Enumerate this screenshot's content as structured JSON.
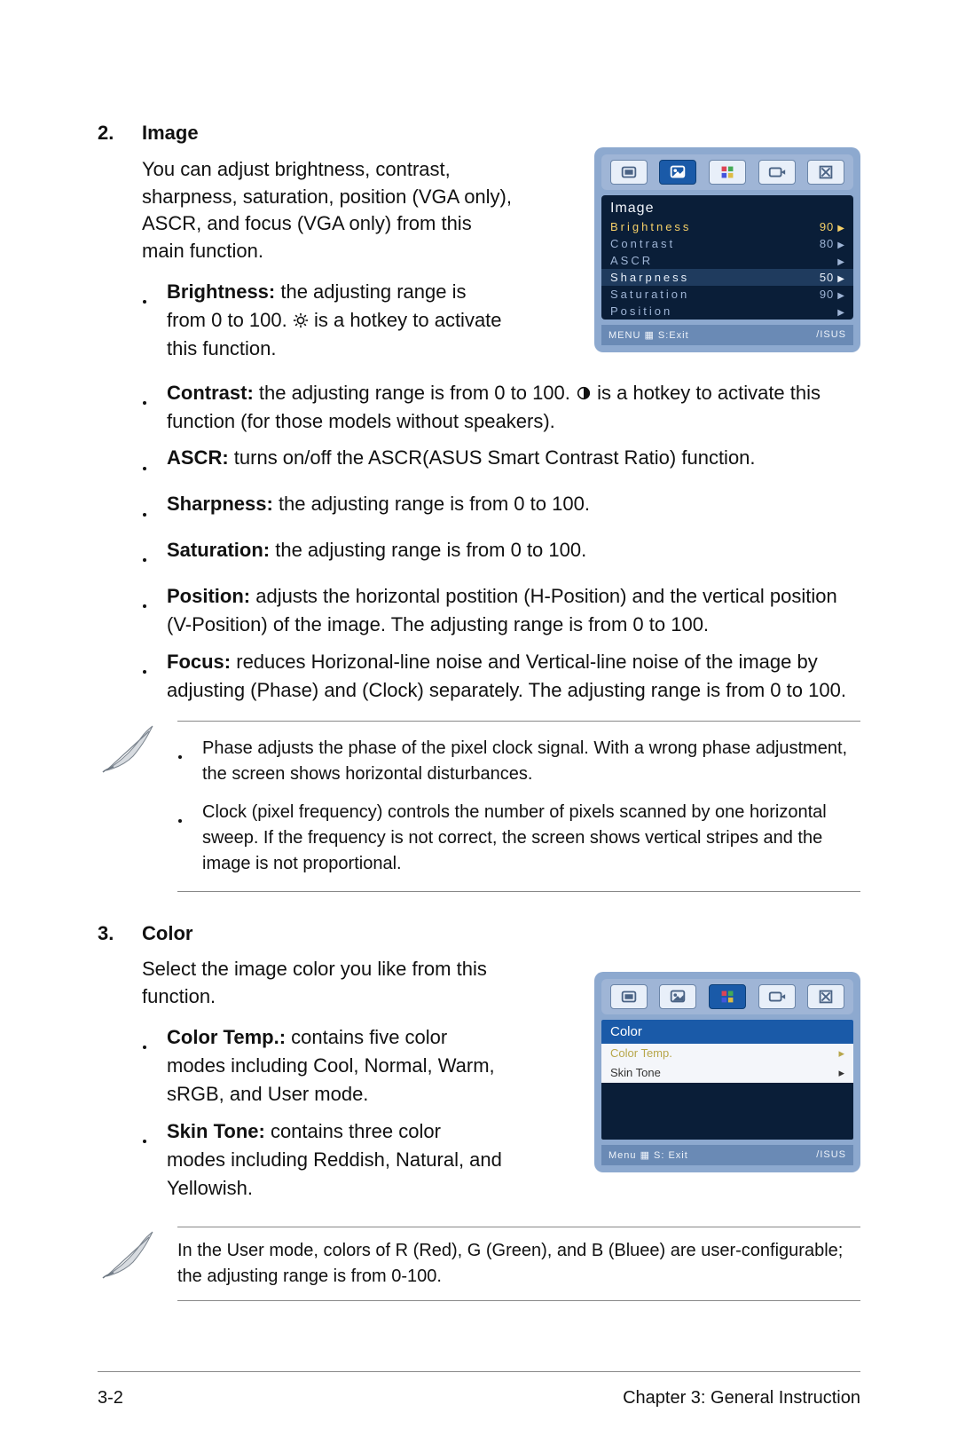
{
  "sections": {
    "image": {
      "number": "2.",
      "title": "Image",
      "intro": "You can adjust brightness, contrast, sharpness, saturation, position (VGA only), ASCR, and focus (VGA only) from this main function.",
      "bullets_narrow": [
        {
          "label": "Brightness:",
          "text": " the adjusting range is from 0 to 100. ",
          "icon": "sun",
          "tail": " is a hotkey to activate this function."
        }
      ],
      "bullets_wide": [
        {
          "label": "Contrast:",
          "text": " the adjusting range is from 0 to 100. ",
          "icon": "halfcircle",
          "tail": " is a hotkey to activate this function (for those models without speakers)."
        },
        {
          "label": "ASCR:",
          "text": " turns on/off the ASCR(ASUS Smart Contrast Ratio) function."
        },
        {
          "label": "Sharpness:",
          "text": " the adjusting range is from 0 to 100."
        },
        {
          "label": "Saturation:",
          "text": " the adjusting range is from 0 to 100."
        },
        {
          "label": "Position:",
          "text": " adjusts the horizontal postition (H-Position) and the vertical position (V-Position) of the image. The adjusting range is from 0 to 100."
        },
        {
          "label": "Focus:",
          "text": " reduces Horizonal-line noise and Vertical-line noise of the image by adjusting (Phase) and (Clock) separately. The adjusting range is from 0 to 100."
        }
      ],
      "notes": [
        "Phase adjusts the phase of the pixel clock signal. With a wrong phase adjustment, the screen shows  horizontal disturbances.",
        "Clock (pixel frequency) controls the number of pixels scanned by one horizontal sweep. If the frequency is not correct, the screen shows vertical stripes and the image is not proportional."
      ]
    },
    "color": {
      "number": "3.",
      "title": "Color",
      "intro": "Select the image color you like from this function.",
      "bullets": [
        {
          "label": "Color Temp.:",
          "text": " contains five color modes including Cool, Normal, Warm, sRGB, and User mode."
        },
        {
          "label": "Skin Tone:",
          "text": " contains three color modes including Reddish, Natural, and Yellowish."
        }
      ],
      "note": "In the User mode, colors of R (Red), G (Green), and B (Bluee) are user-configurable; the adjusting range is from 0-100."
    }
  },
  "osd_image": {
    "bg": "#8da9cf",
    "title": "Image",
    "rows": [
      {
        "label": "Brightness",
        "value": "90",
        "style": "hl"
      },
      {
        "label": "Contrast",
        "value": "80",
        "style": ""
      },
      {
        "label": "ASCR",
        "value": "",
        "style": ""
      },
      {
        "label": "Sharpness",
        "value": "50",
        "style": "sel"
      },
      {
        "label": "Saturation",
        "value": "90",
        "style": ""
      },
      {
        "label": "Position",
        "value": "",
        "style": ""
      }
    ],
    "footer_left": "MENU ▦  S:Exit",
    "footer_right": "/ISUS",
    "active_tab": 1
  },
  "osd_color": {
    "bg": "#8da9cf",
    "title": "Color",
    "rows": [
      {
        "label": "Color Temp.",
        "dim": true
      },
      {
        "label": "Skin Tone",
        "dim": false
      }
    ],
    "footer_left": "Menu ▦   S: Exit",
    "footer_right": "/ISUS",
    "active_tab": 2
  },
  "footer": {
    "left": "3-2",
    "right": "Chapter 3: General Instruction"
  }
}
